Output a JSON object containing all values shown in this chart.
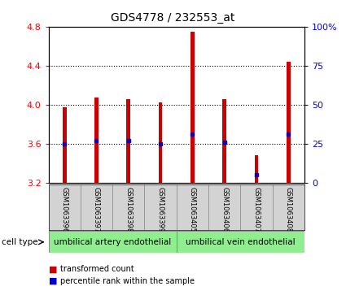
{
  "title": "GDS4778 / 232553_at",
  "samples": [
    "GSM1063396",
    "GSM1063397",
    "GSM1063398",
    "GSM1063399",
    "GSM1063405",
    "GSM1063406",
    "GSM1063407",
    "GSM1063408"
  ],
  "bar_bottoms": [
    3.2,
    3.2,
    3.2,
    3.2,
    3.2,
    3.2,
    3.2,
    3.2
  ],
  "bar_tops": [
    3.97,
    4.07,
    4.06,
    4.02,
    4.75,
    4.06,
    3.48,
    4.44
  ],
  "blue_values": [
    3.6,
    3.63,
    3.63,
    3.6,
    3.7,
    3.62,
    3.28,
    3.7
  ],
  "ylim_left": [
    3.2,
    4.8
  ],
  "ylim_right": [
    0,
    100
  ],
  "yticks_left": [
    3.2,
    3.6,
    4.0,
    4.4,
    4.8
  ],
  "yticks_right": [
    0,
    25,
    50,
    75,
    100
  ],
  "ytick_labels_right": [
    "0",
    "25",
    "50",
    "75",
    "100%"
  ],
  "bar_color": "#CC0000",
  "blue_color": "#0000CC",
  "bar_width": 0.12,
  "grid_color": "#000000",
  "group1_label": "umbilical artery endothelial",
  "group2_label": "umbilical vein endothelial",
  "group1_count": 4,
  "group2_count": 4,
  "cell_type_label": "cell type",
  "legend_red": "transformed count",
  "legend_blue": "percentile rank within the sample",
  "bg_label_area": "#d3d3d3",
  "bg_group": "#90EE90",
  "grid_dotted_vals": [
    3.6,
    4.0,
    4.4
  ]
}
